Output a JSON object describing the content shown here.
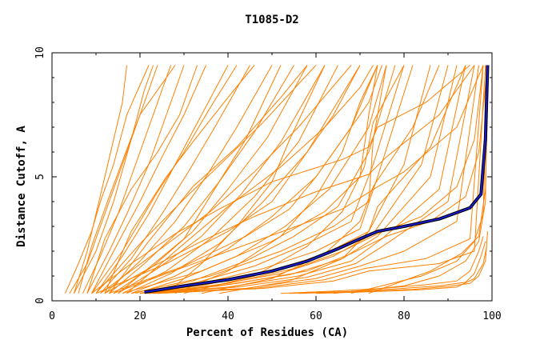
{
  "chart_data": {
    "type": "line",
    "title": "T1085-D2",
    "xlabel": "Percent of Residues (CA)",
    "ylabel": "Distance Cutoff, A",
    "xlim": [
      0,
      100
    ],
    "ylim": [
      0,
      10
    ],
    "xticks": [
      "0",
      "20",
      "40",
      "60",
      "80",
      "100"
    ],
    "yticks": [
      "0",
      "5",
      "10"
    ],
    "grid": false,
    "legend": "none",
    "colors": {
      "models": "#ff8000",
      "highlight_outer": "#000000",
      "highlight_inner": "#1a1acc"
    },
    "highlight_series": {
      "x": [
        21,
        30,
        40,
        50,
        58,
        65,
        70,
        74,
        80,
        88,
        95,
        97.5,
        98.5,
        99
      ],
      "y": [
        0.35,
        0.6,
        0.85,
        1.2,
        1.6,
        2.1,
        2.5,
        2.8,
        3.0,
        3.3,
        3.75,
        4.3,
        6.5,
        9.5
      ]
    },
    "model_series": [
      {
        "x": [
          4,
          8,
          11,
          15,
          19,
          22,
          24
        ],
        "y": [
          0.3,
          1.5,
          3,
          5,
          7,
          8.5,
          9.5
        ]
      },
      {
        "x": [
          5,
          10,
          14,
          18,
          21,
          23
        ],
        "y": [
          0.3,
          2,
          4,
          6.5,
          8.5,
          9.5
        ]
      },
      {
        "x": [
          7,
          11,
          15,
          18,
          21,
          24,
          27
        ],
        "y": [
          0.3,
          1.8,
          3.5,
          5,
          6.5,
          8,
          9.5
        ]
      },
      {
        "x": [
          8,
          13,
          17,
          22,
          26,
          30
        ],
        "y": [
          0.3,
          2,
          3.5,
          5.5,
          7.5,
          9.5
        ]
      },
      {
        "x": [
          9,
          14,
          20,
          25,
          30,
          35
        ],
        "y": [
          0.3,
          2,
          4,
          5.8,
          7.5,
          9.5
        ]
      },
      {
        "x": [
          10,
          16,
          22,
          28,
          34,
          40
        ],
        "y": [
          0.3,
          1.8,
          3.5,
          5.5,
          7.5,
          9.5
        ]
      },
      {
        "x": [
          11,
          18,
          25,
          31,
          37,
          45
        ],
        "y": [
          0.3,
          1.7,
          3.5,
          5.2,
          7,
          9.5
        ]
      },
      {
        "x": [
          12,
          20,
          28,
          35,
          42,
          50
        ],
        "y": [
          0.3,
          1.6,
          3.2,
          5,
          7,
          9.5
        ]
      },
      {
        "x": [
          13,
          21,
          30,
          38,
          46,
          55
        ],
        "y": [
          0.3,
          1.5,
          3,
          4.8,
          6.8,
          9.5
        ]
      },
      {
        "x": [
          14,
          23,
          32,
          40,
          49,
          58
        ],
        "y": [
          0.3,
          1.4,
          2.8,
          4.5,
          6.6,
          9.5
        ]
      },
      {
        "x": [
          15,
          24,
          34,
          43,
          52,
          62
        ],
        "y": [
          0.3,
          1.3,
          2.6,
          4.3,
          6.4,
          9.5
        ]
      },
      {
        "x": [
          16,
          26,
          36,
          46,
          56,
          65
        ],
        "y": [
          0.3,
          1.2,
          2.5,
          4.2,
          6.4,
          9.5
        ]
      },
      {
        "x": [
          17,
          27,
          38,
          48,
          58,
          70
        ],
        "y": [
          0.3,
          1.1,
          2.3,
          4,
          6,
          9.5
        ]
      },
      {
        "x": [
          18,
          28,
          40,
          50,
          60,
          72,
          75
        ],
        "y": [
          0.3,
          1.0,
          2.1,
          3.4,
          5,
          8,
          9.5
        ]
      },
      {
        "x": [
          19,
          30,
          42,
          53,
          63,
          72,
          76
        ],
        "y": [
          0.3,
          0.9,
          1.8,
          3,
          4.5,
          7,
          9.5
        ]
      },
      {
        "x": [
          20,
          32,
          44,
          55,
          65,
          72,
          78
        ],
        "y": [
          0.3,
          0.8,
          1.6,
          2.6,
          3.8,
          6,
          9.5
        ]
      },
      {
        "x": [
          20,
          33,
          46,
          58,
          68,
          73,
          80
        ],
        "y": [
          0.3,
          0.75,
          1.4,
          2.3,
          3.2,
          5.5,
          9.5
        ]
      },
      {
        "x": [
          20,
          34,
          48,
          60,
          70,
          74,
          82
        ],
        "y": [
          0.3,
          0.7,
          1.3,
          2.0,
          2.9,
          5,
          9.5
        ]
      },
      {
        "x": [
          20,
          35,
          50,
          62,
          72,
          80,
          86
        ],
        "y": [
          0.3,
          0.65,
          1.2,
          1.9,
          2.8,
          5.5,
          9.5
        ]
      },
      {
        "x": [
          20,
          36,
          52,
          64,
          73,
          84,
          90
        ],
        "y": [
          0.3,
          0.6,
          1.1,
          1.8,
          2.7,
          5.5,
          9.5
        ]
      },
      {
        "x": [
          21,
          38,
          54,
          66,
          74,
          86,
          92
        ],
        "y": [
          0.3,
          0.6,
          1.05,
          1.7,
          2.6,
          5,
          9.5
        ]
      },
      {
        "x": [
          21,
          40,
          56,
          68,
          75,
          88,
          94
        ],
        "y": [
          0.3,
          0.55,
          1.0,
          1.6,
          2.5,
          4.5,
          9.5
        ]
      },
      {
        "x": [
          22,
          42,
          58,
          69,
          76,
          90,
          96
        ],
        "y": [
          0.3,
          0.55,
          0.95,
          1.5,
          2.3,
          4,
          9.5
        ]
      },
      {
        "x": [
          22,
          44,
          60,
          70,
          80,
          92,
          97
        ],
        "y": [
          0.3,
          0.5,
          0.9,
          1.4,
          2.0,
          3.2,
          9.5
        ]
      },
      {
        "x": [
          23,
          46,
          62,
          71,
          85,
          95,
          98
        ],
        "y": [
          0.3,
          0.5,
          0.85,
          1.3,
          1.7,
          2.5,
          9.5
        ]
      },
      {
        "x": [
          24,
          48,
          64,
          72,
          88,
          96,
          98.5
        ],
        "y": [
          0.3,
          0.5,
          0.8,
          1.2,
          1.5,
          2.0,
          9.5
        ]
      },
      {
        "x": [
          8,
          12,
          18,
          24,
          29,
          33
        ],
        "y": [
          0.3,
          2.5,
          4.5,
          6,
          7.5,
          9.5
        ]
      },
      {
        "x": [
          6,
          9,
          13,
          17,
          20,
          28
        ],
        "y": [
          0.3,
          2.2,
          4.2,
          6.1,
          7.5,
          9.5
        ]
      },
      {
        "x": [
          10,
          20,
          30,
          40,
          48,
          60
        ],
        "y": [
          0.3,
          2.3,
          4.1,
          5.8,
          7.2,
          9.5
        ]
      },
      {
        "x": [
          11,
          24,
          36,
          46,
          56,
          68
        ],
        "y": [
          0.3,
          2.0,
          3.6,
          5.2,
          7.0,
          9.5
        ]
      },
      {
        "x": [
          9,
          18,
          28,
          38,
          50,
          66,
          72,
          74,
          85,
          95
        ],
        "y": [
          0.3,
          1.5,
          2.7,
          3.7,
          4.8,
          5.7,
          6.2,
          7.0,
          8.0,
          9.5
        ]
      },
      {
        "x": [
          12,
          22,
          34,
          46,
          60,
          72,
          76,
          88,
          96
        ],
        "y": [
          0.3,
          1.3,
          2.4,
          3.4,
          4.4,
          5.1,
          5.8,
          7.5,
          9.5
        ]
      },
      {
        "x": [
          14,
          26,
          40,
          54,
          66,
          74,
          80,
          92,
          98
        ],
        "y": [
          0.3,
          1.1,
          2.0,
          2.9,
          3.7,
          4.6,
          5.2,
          7.0,
          9.5
        ]
      },
      {
        "x": [
          10,
          26,
          40,
          50,
          56,
          64,
          70
        ],
        "y": [
          0.3,
          1.5,
          2.8,
          4,
          5.5,
          7.5,
          9.5
        ]
      },
      {
        "x": [
          13,
          30,
          44,
          54,
          60,
          68,
          74
        ],
        "y": [
          0.3,
          1.4,
          2.6,
          3.7,
          5.0,
          7.0,
          9.5
        ]
      },
      {
        "x": [
          15,
          30,
          38,
          44,
          48,
          52
        ],
        "y": [
          0.3,
          2.5,
          4.8,
          6.5,
          8,
          9.5
        ]
      },
      {
        "x": [
          9,
          16,
          24,
          30,
          36,
          42
        ],
        "y": [
          0.3,
          2.0,
          4.4,
          6.0,
          7.8,
          9.5
        ]
      },
      {
        "x": [
          16,
          34,
          50,
          62,
          70,
          72,
          74
        ],
        "y": [
          0.3,
          1.2,
          2.4,
          3.6,
          5.0,
          7.5,
          9.5
        ]
      },
      {
        "x": [
          18,
          36,
          52,
          64,
          72,
          73,
          76
        ],
        "y": [
          0.3,
          1.0,
          2.0,
          3.0,
          4.0,
          6.5,
          9.5
        ]
      },
      {
        "x": [
          52,
          65,
          75,
          85,
          92,
          95,
          97,
          98
        ],
        "y": [
          0.3,
          0.4,
          0.5,
          0.65,
          0.8,
          1.2,
          2,
          2.6
        ]
      },
      {
        "x": [
          54,
          68,
          78,
          88,
          94,
          96,
          97.5,
          98.5
        ],
        "y": [
          0.3,
          0.38,
          0.48,
          0.6,
          0.75,
          1.1,
          1.8,
          2.4
        ]
      },
      {
        "x": [
          56,
          70,
          82,
          90,
          95,
          97,
          98.5,
          99
        ],
        "y": [
          0.3,
          0.37,
          0.46,
          0.58,
          0.7,
          1.0,
          1.6,
          2.8
        ]
      },
      {
        "x": [
          60,
          72,
          84,
          92,
          96,
          98,
          98.8
        ],
        "y": [
          0.3,
          0.36,
          0.45,
          0.55,
          0.9,
          1.5,
          2.2
        ]
      },
      {
        "x": [
          64,
          80,
          88,
          94,
          97,
          98.5,
          99
        ],
        "y": [
          0.3,
          0.6,
          1.0,
          1.6,
          2.4,
          4,
          9.5
        ]
      },
      {
        "x": [
          68,
          84,
          92,
          96,
          98,
          99
        ],
        "y": [
          0.3,
          1.0,
          1.6,
          2.4,
          3.5,
          9.5
        ]
      },
      {
        "x": [
          72,
          86,
          93,
          97,
          98.5,
          99.2
        ],
        "y": [
          0.3,
          1.2,
          1.9,
          2.6,
          4.5,
          9.5
        ]
      },
      {
        "x": [
          22,
          40,
          55,
          66,
          74,
          84,
          92,
          96,
          98
        ],
        "y": [
          0.3,
          0.7,
          1.3,
          2.0,
          2.7,
          3.4,
          4.6,
          6.5,
          9.5
        ]
      },
      {
        "x": [
          24,
          42,
          58,
          68,
          76,
          86,
          94,
          97,
          99
        ],
        "y": [
          0.3,
          0.7,
          1.2,
          1.9,
          2.6,
          3.2,
          4.2,
          6.0,
          9.5
        ]
      },
      {
        "x": [
          5,
          8,
          10,
          12,
          14,
          16,
          17
        ],
        "y": [
          0.3,
          2.0,
          3.5,
          5.0,
          6.5,
          8.0,
          9.5
        ]
      },
      {
        "x": [
          3,
          6,
          9,
          11,
          14,
          17,
          22
        ],
        "y": [
          0.3,
          1.5,
          2.8,
          4.0,
          5.5,
          7.5,
          9.5
        ]
      },
      {
        "x": [
          26,
          34,
          42,
          50,
          54,
          58,
          62
        ],
        "y": [
          0.3,
          1.5,
          3.0,
          4.8,
          6.5,
          8.0,
          9.5
        ]
      },
      {
        "x": [
          28,
          40,
          52,
          60,
          66,
          70,
          74
        ],
        "y": [
          0.3,
          1.2,
          2.6,
          4.2,
          6.0,
          8.0,
          9.5
        ]
      },
      {
        "x": [
          30,
          46,
          58,
          66,
          71,
          73,
          80
        ],
        "y": [
          0.3,
          1.0,
          2.2,
          3.6,
          5.4,
          7.2,
          9.5
        ]
      },
      {
        "x": [
          34,
          50,
          62,
          70,
          73,
          82,
          88
        ],
        "y": [
          0.3,
          0.9,
          1.9,
          3.2,
          4.6,
          7.0,
          9.5
        ]
      },
      {
        "x": [
          38,
          54,
          66,
          72,
          74,
          86,
          94
        ],
        "y": [
          0.3,
          0.8,
          1.7,
          2.8,
          3.8,
          6.2,
          9.5
        ]
      },
      {
        "x": [
          12,
          18,
          26,
          32,
          40,
          46
        ],
        "y": [
          0.3,
          2.8,
          5.0,
          6.4,
          8.2,
          9.5
        ]
      },
      {
        "x": [
          13,
          22,
          32,
          42,
          52,
          58
        ],
        "y": [
          0.3,
          2.4,
          4.6,
          6.2,
          8.2,
          9.5
        ]
      },
      {
        "x": [
          17,
          28,
          40,
          52,
          62,
          70,
          73
        ],
        "y": [
          0.3,
          2.0,
          3.8,
          5.4,
          7.0,
          8.6,
          9.5
        ]
      }
    ]
  }
}
